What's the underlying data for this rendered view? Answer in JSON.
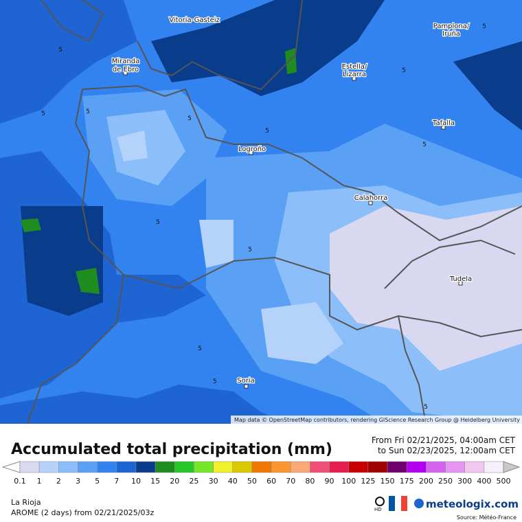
{
  "map": {
    "cities": [
      "Vitoria-Gasteiz",
      "Pamplona/",
      "Iruña",
      "Miranda",
      "de Ebro",
      "Estella/",
      "Lizarra",
      "Tafalla",
      "Logroño",
      "Calahorra",
      "Tudela",
      "Soria"
    ],
    "contour_labels": [
      "5",
      "5",
      "5",
      "5",
      "5",
      "5",
      "5",
      "5",
      "5",
      "5",
      "5",
      "5",
      "5"
    ],
    "attribution": "Map data © OpenStreetMap contributors, rendering GIScience Research Group @ Heidelberg University"
  },
  "legend": {
    "title": "Accumulated total precipitation (mm)",
    "period": [
      "From Fri 02/21/2025, 04:00am CET",
      "to Sun 02/23/2025, 12:00am CET"
    ],
    "ticks": [
      0.1,
      1,
      2,
      3,
      5,
      7,
      10,
      15,
      20,
      25,
      30,
      40,
      50,
      60,
      70,
      80,
      90,
      100,
      125,
      150,
      175,
      200,
      250,
      300,
      400,
      500
    ],
    "colors": [
      "#d8d8f0",
      "#b4d2fa",
      "#8cbefa",
      "#5aa0f5",
      "#3282f0",
      "#1e64d2",
      "#0a3c8c",
      "#1e8c1e",
      "#28c828",
      "#78e628",
      "#f0f028",
      "#dcc800",
      "#f07800",
      "#fa9632",
      "#faaa78",
      "#f05078",
      "#e61e50",
      "#c80000",
      "#a00000",
      "#6e006e",
      "#b400f0",
      "#d264f0",
      "#e696f0",
      "#f0c8f0",
      "#f5f0fa"
    ]
  },
  "footer": {
    "region": "La Rioja",
    "model": "AROME (2 days) from 02/21/2025/03z",
    "hd": "HD",
    "brand": "meteologix.com",
    "source": "Source: Météo-France"
  }
}
